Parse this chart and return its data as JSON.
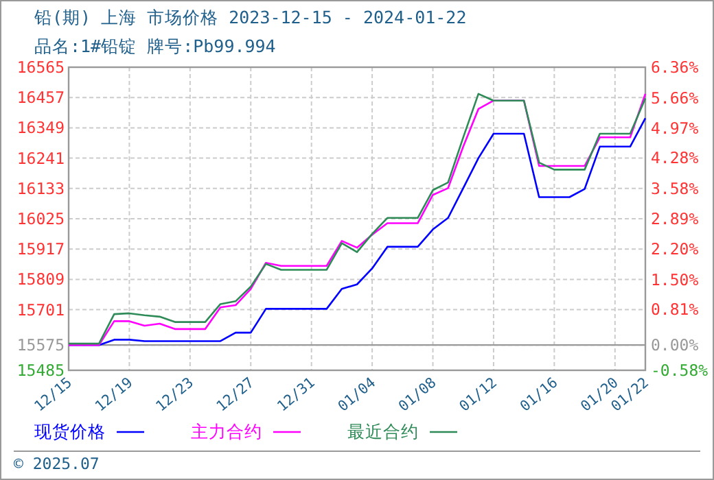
{
  "chart_data": {
    "type": "line",
    "title": "铅(期) 上海 市场价格 2023-12-15 - 2024-01-22",
    "subtitle": "品名:1#铅锭 牌号:Pb99.994",
    "x": [
      "2023-12-15",
      "2023-12-16",
      "2023-12-17",
      "2023-12-18",
      "2023-12-19",
      "2023-12-20",
      "2023-12-21",
      "2023-12-22",
      "2023-12-23",
      "2023-12-24",
      "2023-12-25",
      "2023-12-26",
      "2023-12-27",
      "2023-12-28",
      "2023-12-29",
      "2023-12-30",
      "2023-12-31",
      "2024-01-01",
      "2024-01-02",
      "2024-01-03",
      "2024-01-04",
      "2024-01-05",
      "2024-01-06",
      "2024-01-07",
      "2024-01-08",
      "2024-01-09",
      "2024-01-10",
      "2024-01-11",
      "2024-01-12",
      "2024-01-13",
      "2024-01-14",
      "2024-01-15",
      "2024-01-16",
      "2024-01-17",
      "2024-01-18",
      "2024-01-19",
      "2024-01-20",
      "2024-01-21",
      "2024-01-22"
    ],
    "series": [
      {
        "name": "现货价格",
        "color": "#0000ff",
        "values": [
          15575,
          15575,
          15575,
          15594,
          15594,
          15589,
          15589,
          15589,
          15589,
          15589,
          15589,
          15619,
          15619,
          15704,
          15704,
          15704,
          15704,
          15704,
          15775,
          15791,
          15848,
          15925,
          15925,
          15925,
          15987,
          16028,
          16134,
          16241,
          16328,
          16328,
          16328,
          16102,
          16102,
          16102,
          16131,
          16282,
          16282,
          16282,
          16383
        ]
      },
      {
        "name": "主力合约",
        "color": "#ff00ff",
        "values": [
          15575,
          15575,
          15575,
          15660,
          15660,
          15644,
          15651,
          15632,
          15632,
          15632,
          15709,
          15717,
          15775,
          15868,
          15857,
          15857,
          15857,
          15857,
          15946,
          15922,
          15968,
          16009,
          16009,
          16009,
          16110,
          16134,
          16282,
          16416,
          16446,
          16446,
          16446,
          16213,
          16213,
          16213,
          16213,
          16315,
          16315,
          16315,
          16470
        ]
      },
      {
        "name": "最近合约",
        "color": "#2e8b57",
        "values": [
          15580,
          15580,
          15580,
          15685,
          15688,
          15681,
          15676,
          15657,
          15657,
          15657,
          15721,
          15731,
          15783,
          15864,
          15843,
          15843,
          15843,
          15843,
          15938,
          15906,
          15971,
          16028,
          16028,
          16028,
          16127,
          16154,
          16315,
          16470,
          16446,
          16446,
          16446,
          16225,
          16200,
          16200,
          16200,
          16328,
          16328,
          16328,
          16454
        ]
      }
    ],
    "xlim": [
      "2023-12-15",
      "2024-01-22"
    ],
    "xticks": [
      {
        "value": "2023-12-15",
        "label": "12/15"
      },
      {
        "value": "2023-12-19",
        "label": "12/19"
      },
      {
        "value": "2023-12-23",
        "label": "12/23"
      },
      {
        "value": "2023-12-27",
        "label": "12/27"
      },
      {
        "value": "2023-12-31",
        "label": "12/31"
      },
      {
        "value": "2024-01-04",
        "label": "01/04"
      },
      {
        "value": "2024-01-08",
        "label": "01/08"
      },
      {
        "value": "2024-01-12",
        "label": "01/12"
      },
      {
        "value": "2024-01-16",
        "label": "01/16"
      },
      {
        "value": "2024-01-20",
        "label": "01/20"
      },
      {
        "value": "2024-01-22",
        "label": "01/22"
      }
    ],
    "ylim": [
      15485,
      16565
    ],
    "yticks": [
      15485,
      15575,
      15701,
      15809,
      15917,
      16025,
      16133,
      16241,
      16349,
      16457,
      16565
    ],
    "y2lim": [
      -0.58,
      6.36
    ],
    "y2ticks": [
      {
        "value": -0.58,
        "label": "-0.58%"
      },
      {
        "value": 0,
        "label": "0.00%"
      },
      {
        "value": 0.81,
        "label": "0.81%"
      },
      {
        "value": 1.5,
        "label": "1.50%"
      },
      {
        "value": 2.2,
        "label": "2.20%"
      },
      {
        "value": 2.89,
        "label": "2.89%"
      },
      {
        "value": 3.58,
        "label": "3.58%"
      },
      {
        "value": 4.28,
        "label": "4.28%"
      },
      {
        "value": 4.97,
        "label": "4.97%"
      },
      {
        "value": 5.66,
        "label": "5.66%"
      },
      {
        "value": 6.36,
        "label": "6.36%"
      }
    ],
    "ref_lines": [
      {
        "axis": "y",
        "value": 15575,
        "color": "#999999",
        "line_style": "solid"
      }
    ],
    "grid": true,
    "legend": "bottom",
    "line_style": "solid",
    "marker": "none",
    "annotations": [
      "© 2025.07"
    ]
  }
}
